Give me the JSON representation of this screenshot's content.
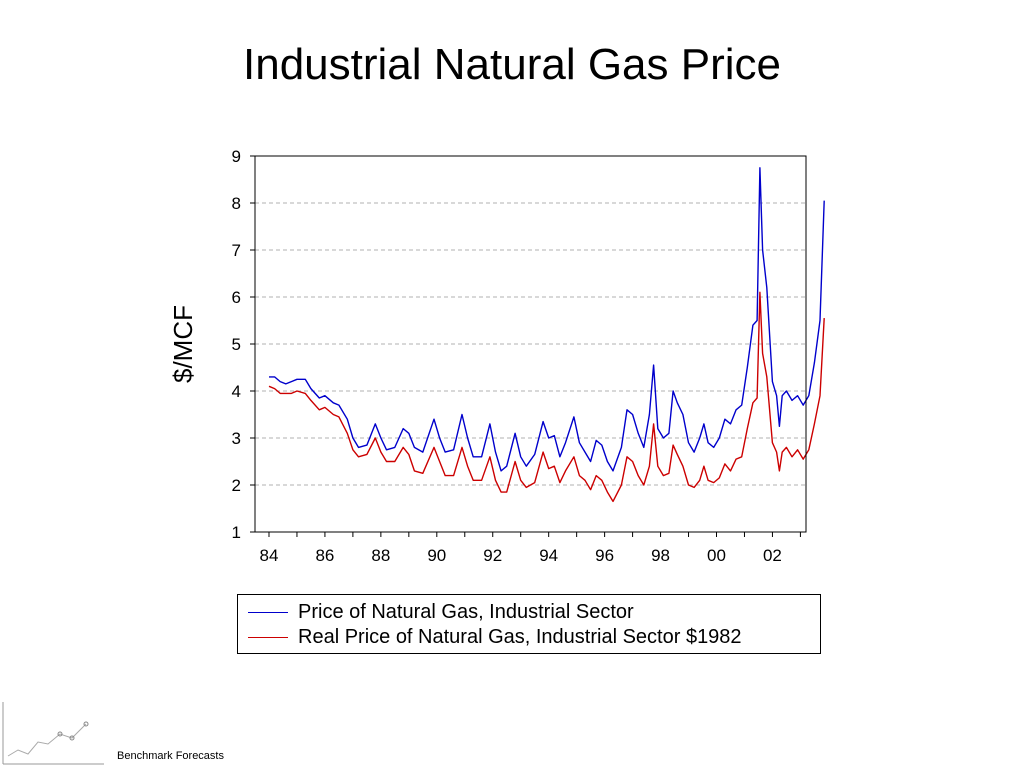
{
  "chart_data": {
    "type": "line",
    "title": "Industrial Natural Gas Price",
    "ylabel": "$/MCF",
    "xlabel": "",
    "xlim": [
      1983.5,
      2003.2
    ],
    "ylim": [
      1,
      9
    ],
    "x_ticks": [
      "84",
      "86",
      "88",
      "90",
      "92",
      "94",
      "96",
      "98",
      "00",
      "02"
    ],
    "x_tick_values": [
      1984,
      1986,
      1988,
      1990,
      1992,
      1994,
      1996,
      1998,
      2000,
      2002
    ],
    "y_ticks": [
      1,
      2,
      3,
      4,
      5,
      6,
      7,
      8,
      9
    ],
    "grid": "horizontal dashed",
    "legend_position": "bottom",
    "series": [
      {
        "name": "Price of Natural Gas, Industrial Sector",
        "color": "#0000cc",
        "points": [
          [
            1984.0,
            4.3
          ],
          [
            1984.2,
            4.3
          ],
          [
            1984.4,
            4.2
          ],
          [
            1984.6,
            4.15
          ],
          [
            1984.8,
            4.2
          ],
          [
            1985.0,
            4.25
          ],
          [
            1985.3,
            4.25
          ],
          [
            1985.5,
            4.05
          ],
          [
            1985.8,
            3.85
          ],
          [
            1986.0,
            3.9
          ],
          [
            1986.3,
            3.75
          ],
          [
            1986.5,
            3.7
          ],
          [
            1986.8,
            3.4
          ],
          [
            1987.0,
            3.0
          ],
          [
            1987.2,
            2.8
          ],
          [
            1987.5,
            2.85
          ],
          [
            1987.8,
            3.3
          ],
          [
            1988.0,
            3.0
          ],
          [
            1988.2,
            2.75
          ],
          [
            1988.5,
            2.8
          ],
          [
            1988.8,
            3.2
          ],
          [
            1989.0,
            3.1
          ],
          [
            1989.2,
            2.8
          ],
          [
            1989.5,
            2.7
          ],
          [
            1989.9,
            3.4
          ],
          [
            1990.1,
            3.0
          ],
          [
            1990.3,
            2.7
          ],
          [
            1990.6,
            2.75
          ],
          [
            1990.9,
            3.5
          ],
          [
            1991.1,
            3.0
          ],
          [
            1991.3,
            2.6
          ],
          [
            1991.6,
            2.6
          ],
          [
            1991.9,
            3.3
          ],
          [
            1992.1,
            2.7
          ],
          [
            1992.3,
            2.3
          ],
          [
            1992.5,
            2.4
          ],
          [
            1992.8,
            3.1
          ],
          [
            1993.0,
            2.6
          ],
          [
            1993.2,
            2.4
          ],
          [
            1993.5,
            2.65
          ],
          [
            1993.8,
            3.35
          ],
          [
            1994.0,
            3.0
          ],
          [
            1994.2,
            3.05
          ],
          [
            1994.4,
            2.6
          ],
          [
            1994.6,
            2.9
          ],
          [
            1994.9,
            3.45
          ],
          [
            1995.1,
            2.9
          ],
          [
            1995.3,
            2.7
          ],
          [
            1995.5,
            2.5
          ],
          [
            1995.7,
            2.95
          ],
          [
            1995.9,
            2.85
          ],
          [
            1996.1,
            2.5
          ],
          [
            1996.3,
            2.3
          ],
          [
            1996.6,
            2.8
          ],
          [
            1996.8,
            3.6
          ],
          [
            1997.0,
            3.5
          ],
          [
            1997.2,
            3.1
          ],
          [
            1997.4,
            2.8
          ],
          [
            1997.6,
            3.5
          ],
          [
            1997.75,
            4.55
          ],
          [
            1997.9,
            3.2
          ],
          [
            1998.1,
            3.0
          ],
          [
            1998.3,
            3.1
          ],
          [
            1998.45,
            4.0
          ],
          [
            1998.6,
            3.75
          ],
          [
            1998.8,
            3.5
          ],
          [
            1999.0,
            2.9
          ],
          [
            1999.2,
            2.7
          ],
          [
            1999.4,
            3.0
          ],
          [
            1999.55,
            3.3
          ],
          [
            1999.7,
            2.9
          ],
          [
            1999.9,
            2.8
          ],
          [
            2000.1,
            3.0
          ],
          [
            2000.3,
            3.4
          ],
          [
            2000.5,
            3.3
          ],
          [
            2000.7,
            3.6
          ],
          [
            2000.9,
            3.7
          ],
          [
            2001.1,
            4.5
          ],
          [
            2001.3,
            5.4
          ],
          [
            2001.45,
            5.5
          ],
          [
            2001.55,
            8.75
          ],
          [
            2001.65,
            7.0
          ],
          [
            2001.8,
            6.2
          ],
          [
            2002.0,
            4.2
          ],
          [
            2002.15,
            3.9
          ],
          [
            2002.25,
            3.25
          ],
          [
            2002.35,
            3.9
          ],
          [
            2002.5,
            4.0
          ],
          [
            2002.7,
            3.8
          ],
          [
            2002.9,
            3.9
          ],
          [
            2003.1,
            3.7
          ],
          [
            2003.3,
            3.9
          ],
          [
            2003.5,
            4.6
          ],
          [
            2003.7,
            5.5
          ],
          [
            2003.85,
            8.05
          ]
        ]
      },
      {
        "name": "Real Price of Natural Gas, Industrial Sector $1982",
        "color": "#cc0000",
        "points": [
          [
            1984.0,
            4.1
          ],
          [
            1984.2,
            4.05
          ],
          [
            1984.4,
            3.95
          ],
          [
            1984.6,
            3.95
          ],
          [
            1984.8,
            3.95
          ],
          [
            1985.0,
            4.0
          ],
          [
            1985.3,
            3.95
          ],
          [
            1985.5,
            3.8
          ],
          [
            1985.8,
            3.6
          ],
          [
            1986.0,
            3.65
          ],
          [
            1986.3,
            3.5
          ],
          [
            1986.5,
            3.45
          ],
          [
            1986.8,
            3.1
          ],
          [
            1987.0,
            2.75
          ],
          [
            1987.2,
            2.6
          ],
          [
            1987.5,
            2.65
          ],
          [
            1987.8,
            3.0
          ],
          [
            1988.0,
            2.7
          ],
          [
            1988.2,
            2.5
          ],
          [
            1988.5,
            2.5
          ],
          [
            1988.8,
            2.8
          ],
          [
            1989.0,
            2.65
          ],
          [
            1989.2,
            2.3
          ],
          [
            1989.5,
            2.25
          ],
          [
            1989.9,
            2.8
          ],
          [
            1990.1,
            2.5
          ],
          [
            1990.3,
            2.2
          ],
          [
            1990.6,
            2.2
          ],
          [
            1990.9,
            2.8
          ],
          [
            1991.1,
            2.4
          ],
          [
            1991.3,
            2.1
          ],
          [
            1991.6,
            2.1
          ],
          [
            1991.9,
            2.6
          ],
          [
            1992.1,
            2.1
          ],
          [
            1992.3,
            1.85
          ],
          [
            1992.5,
            1.85
          ],
          [
            1992.8,
            2.5
          ],
          [
            1993.0,
            2.1
          ],
          [
            1993.2,
            1.95
          ],
          [
            1993.5,
            2.05
          ],
          [
            1993.8,
            2.7
          ],
          [
            1994.0,
            2.35
          ],
          [
            1994.2,
            2.4
          ],
          [
            1994.4,
            2.05
          ],
          [
            1994.6,
            2.3
          ],
          [
            1994.9,
            2.6
          ],
          [
            1995.1,
            2.2
          ],
          [
            1995.3,
            2.1
          ],
          [
            1995.5,
            1.9
          ],
          [
            1995.7,
            2.2
          ],
          [
            1995.9,
            2.1
          ],
          [
            1996.1,
            1.85
          ],
          [
            1996.3,
            1.65
          ],
          [
            1996.6,
            2.0
          ],
          [
            1996.8,
            2.6
          ],
          [
            1997.0,
            2.5
          ],
          [
            1997.2,
            2.2
          ],
          [
            1997.4,
            2.0
          ],
          [
            1997.6,
            2.4
          ],
          [
            1997.75,
            3.3
          ],
          [
            1997.9,
            2.4
          ],
          [
            1998.1,
            2.2
          ],
          [
            1998.3,
            2.25
          ],
          [
            1998.45,
            2.85
          ],
          [
            1998.6,
            2.65
          ],
          [
            1998.8,
            2.4
          ],
          [
            1999.0,
            2.0
          ],
          [
            1999.2,
            1.95
          ],
          [
            1999.4,
            2.1
          ],
          [
            1999.55,
            2.4
          ],
          [
            1999.7,
            2.1
          ],
          [
            1999.9,
            2.05
          ],
          [
            2000.1,
            2.15
          ],
          [
            2000.3,
            2.45
          ],
          [
            2000.5,
            2.3
          ],
          [
            2000.7,
            2.55
          ],
          [
            2000.9,
            2.6
          ],
          [
            2001.1,
            3.2
          ],
          [
            2001.3,
            3.75
          ],
          [
            2001.45,
            3.85
          ],
          [
            2001.55,
            6.1
          ],
          [
            2001.65,
            4.8
          ],
          [
            2001.8,
            4.3
          ],
          [
            2002.0,
            2.9
          ],
          [
            2002.15,
            2.7
          ],
          [
            2002.25,
            2.3
          ],
          [
            2002.35,
            2.7
          ],
          [
            2002.5,
            2.8
          ],
          [
            2002.7,
            2.6
          ],
          [
            2002.9,
            2.75
          ],
          [
            2003.1,
            2.55
          ],
          [
            2003.3,
            2.75
          ],
          [
            2003.5,
            3.3
          ],
          [
            2003.7,
            3.9
          ],
          [
            2003.85,
            5.55
          ]
        ]
      }
    ]
  },
  "footer": {
    "text": "Benchmark Forecasts"
  }
}
